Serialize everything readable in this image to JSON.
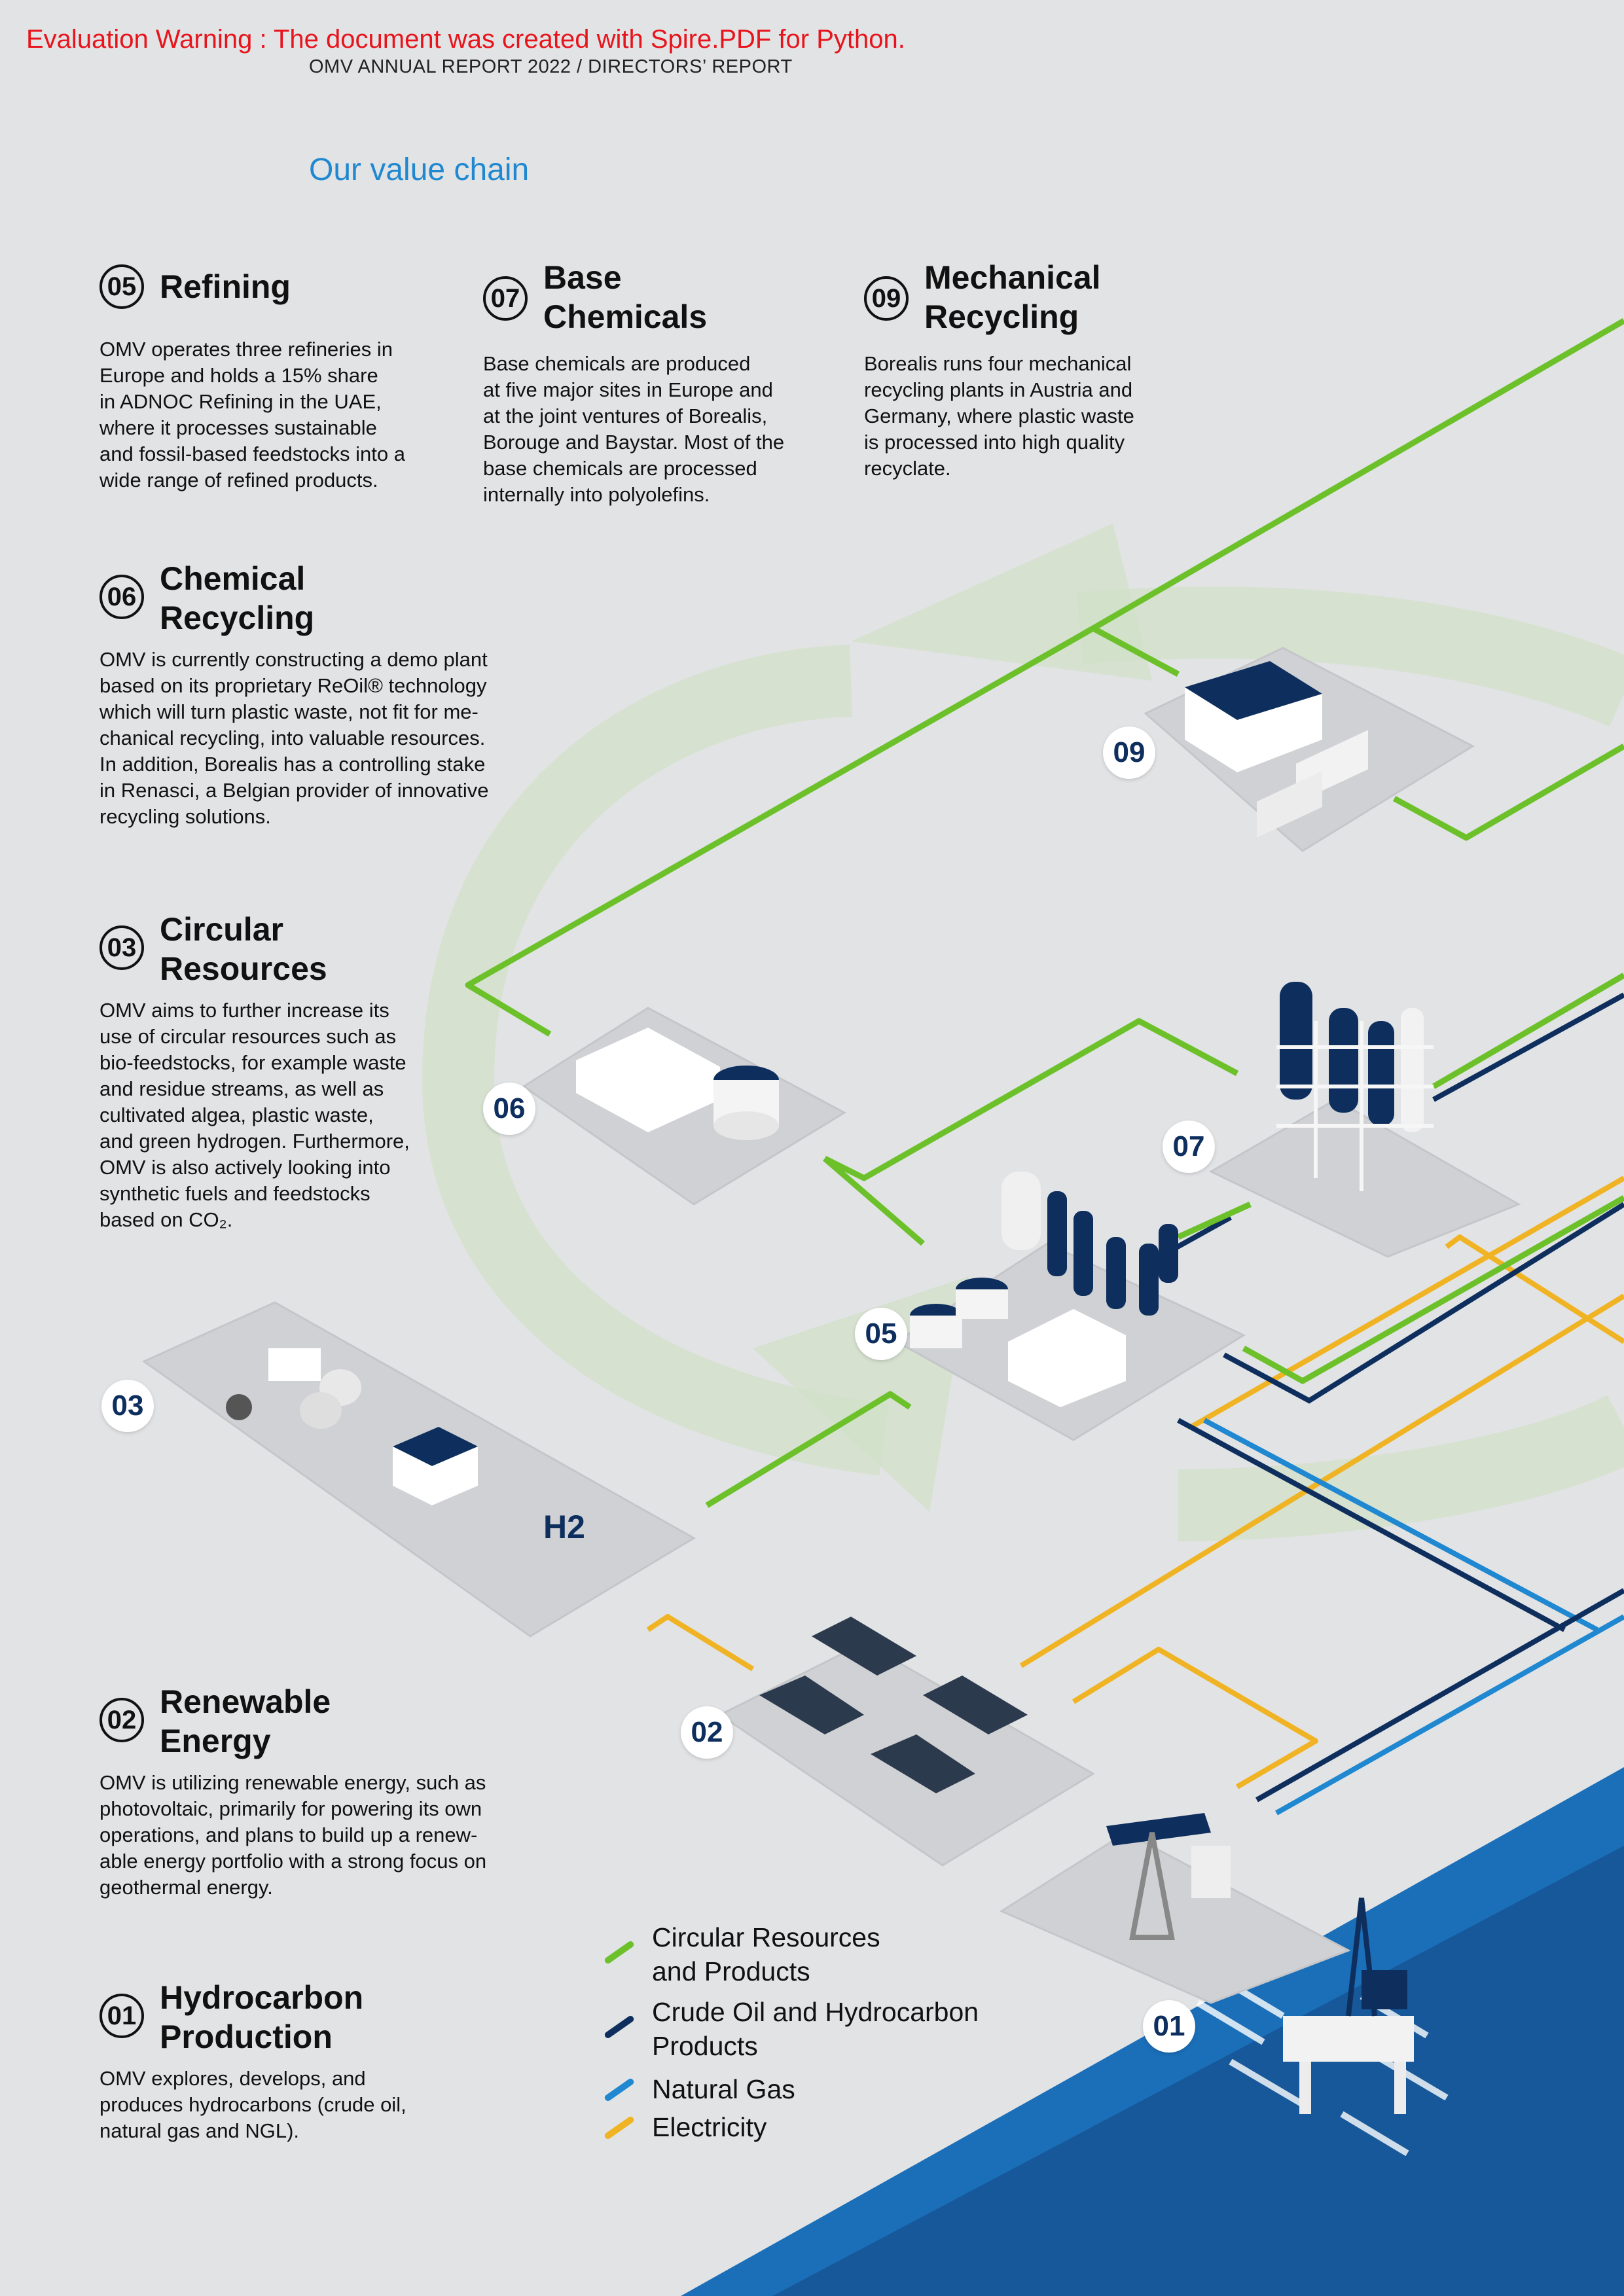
{
  "warning": "Evaluation Warning : The document was created with Spire.PDF for Python.",
  "header": "OMV ANNUAL REPORT 2022 / DIRECTORS’ REPORT",
  "page_title": "Our value chain",
  "colors": {
    "circular": "#6cc12a",
    "crude": "#0e2f5e",
    "gas": "#1f88d0",
    "electricity": "#f0b323",
    "water": "#1b6fb8",
    "title": "#1f88d0",
    "warning": "#e8141c"
  },
  "sections": {
    "s05": {
      "num": "05",
      "title": "Refining",
      "body": "OMV operates three refineries in\nEurope and holds a 15% share\nin ADNOC Refining in the UAE,\nwhere it processes sustainable\nand fossil-based feedstocks into a\nwide range of refined products."
    },
    "s07": {
      "num": "07",
      "title": "Base\nChemicals",
      "body": "Base chemicals are produced\nat five major sites in Europe and\nat the joint ventures of Borealis,\nBorouge and Baystar. Most of the\nbase chemicals are processed\ninternally into polyolefins."
    },
    "s09": {
      "num": "09",
      "title": "Mechanical\nRecycling",
      "body": "Borealis runs four mechanical\nrecycling plants in Austria and\nGermany, where plastic waste\nis processed into high quality\nrecyclate."
    },
    "s06": {
      "num": "06",
      "title": "Chemical\nRecycling",
      "body": "OMV is currently constructing a demo plant\nbased on its proprietary ReOil® technology\nwhich will turn plastic waste, not fit for me-\nchanical recycling, into valuable resources.\nIn addition, Borealis has a controlling stake\nin Renasci, a Belgian provider of innovative\nrecycling solutions."
    },
    "s03": {
      "num": "03",
      "title": "Circular\nResources",
      "body": "OMV aims to further increase its\nuse of circular resources such as\nbio-feedstocks, for example waste\nand residue streams, as well as\ncultivated algea, plastic waste,\nand green hydrogen. Furthermore,\nOMV is also actively looking into\nsynthetic fuels and feedstocks\nbased on CO₂."
    },
    "s02": {
      "num": "02",
      "title": "Renewable\nEnergy",
      "body": "OMV is utilizing renewable energy, such as\nphotovoltaic, primarily for powering its own\noperations, and plans to build up a renew-\nable energy portfolio with a strong focus on\ngeothermal energy."
    },
    "s01": {
      "num": "01",
      "title": "Hydrocarbon\nProduction",
      "body": "OMV explores, develops, and\nproduces hydrocarbons (crude oil,\nnatural gas and NGL)."
    }
  },
  "badges": {
    "b09": "09",
    "b06": "06",
    "b07": "07",
    "b05": "05",
    "b03": "03",
    "b02": "02",
    "b01": "01"
  },
  "hydrogen_label": "H2",
  "legend": {
    "circular": "Circular Resources\nand Products",
    "crude": "Crude Oil and Hydrocarbon\nProducts",
    "gas": "Natural Gas",
    "electricity": "Electricity"
  }
}
